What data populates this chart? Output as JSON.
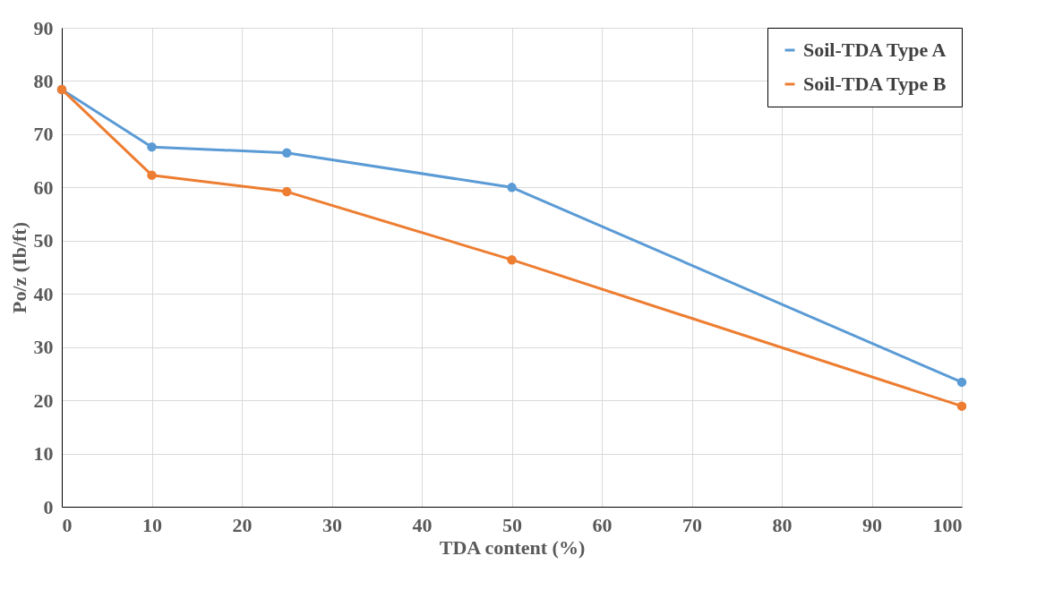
{
  "chart_data": {
    "type": "line",
    "xlabel": "TDA content (%)",
    "ylabel": "Po/z (Ib/ft)",
    "x": [
      0,
      10,
      25,
      50,
      100
    ],
    "series": [
      {
        "name": "Soil-TDA Type A",
        "color": "#5b9bd5",
        "values": [
          78.4,
          67.6,
          66.5,
          60,
          23.4
        ]
      },
      {
        "name": "Soil-TDA Type B",
        "color": "#ed7d31",
        "values": [
          78.4,
          62.3,
          59.2,
          46.4,
          18.9
        ]
      }
    ],
    "xlim": [
      0,
      100
    ],
    "xticks": [
      0,
      10,
      20,
      30,
      40,
      50,
      60,
      70,
      80,
      90,
      100
    ],
    "ylim": [
      0,
      90
    ],
    "yticks": [
      0,
      10,
      20,
      30,
      40,
      50,
      60,
      70,
      80,
      90
    ],
    "grid": true,
    "legend": "top right",
    "marker": "circle",
    "line_style": "solid"
  }
}
